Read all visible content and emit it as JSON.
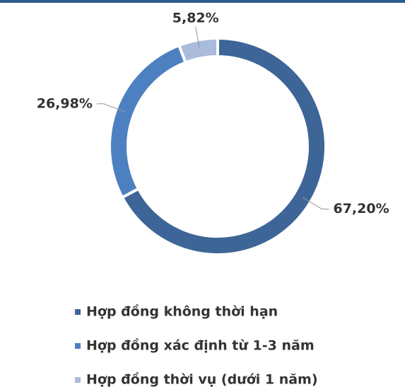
{
  "chart_data": {
    "type": "donut",
    "categories": [
      "Hợp đồng không thời hạn",
      "Hợp đồng xác định từ 1-3 năm",
      "Hợp đồng thời vụ (dưới 1 năm)"
    ],
    "values": [
      67.2,
      26.98,
      5.82
    ],
    "value_labels": [
      "67,20%",
      "26,98%",
      "5,82%"
    ],
    "colors": [
      "#3e6597",
      "#4c80c0",
      "#aabbdc"
    ],
    "legend": "bottom"
  }
}
